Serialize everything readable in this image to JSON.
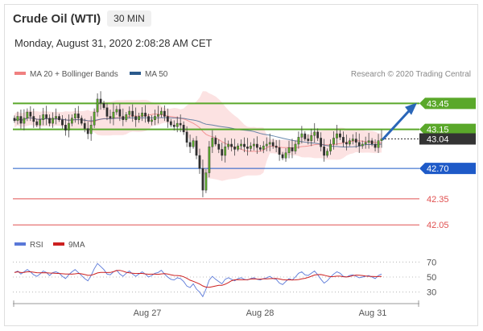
{
  "header": {
    "title": "Crude Oil (WTI)",
    "interval": "30 MIN",
    "datetime": "Monday, August 31, 2020 2:08:28 AM CET"
  },
  "colors": {
    "green": "#5aa82a",
    "blue": "#1e5ac8",
    "red": "#e05050",
    "dark": "#333333",
    "band": "#fbd8d8"
  },
  "chart_data": [
    {
      "type": "candlestick",
      "legend": [
        {
          "name": "MA 20 + Bollinger Bands",
          "color": "#f08080"
        },
        {
          "name": "MA 50",
          "color": "#2a5a8c"
        }
      ],
      "credit": "Research © 2020 Trading Central",
      "ylim": [
        41.95,
        43.62
      ],
      "x_ticks": [
        "Aug 27",
        "Aug 28",
        "Aug 31"
      ],
      "levels": [
        {
          "value": 43.45,
          "label": "43.45",
          "style": "resistance",
          "color": "#5aa82a"
        },
        {
          "value": 43.15,
          "label": "43.15",
          "style": "resistance",
          "color": "#5aa82a"
        },
        {
          "value": 43.04,
          "label": "43.04",
          "style": "last-price",
          "color": "#333333"
        },
        {
          "value": 42.7,
          "label": "42.70",
          "style": "pivot",
          "color": "#1e5ac8"
        },
        {
          "value": 42.35,
          "label": "42.35",
          "style": "support",
          "color": "#e05050"
        },
        {
          "value": 42.05,
          "label": "42.05",
          "style": "support",
          "color": "#e05050"
        }
      ],
      "projection": {
        "from": 43.04,
        "to": 43.4
      },
      "series": {
        "close": [
          43.25,
          43.3,
          43.22,
          43.28,
          43.35,
          43.3,
          43.24,
          43.2,
          43.26,
          43.32,
          43.28,
          43.22,
          43.28,
          43.3,
          43.26,
          43.2,
          43.14,
          43.22,
          43.28,
          43.33,
          43.28,
          43.22,
          43.16,
          43.1,
          43.2,
          43.35,
          43.5,
          43.45,
          43.4,
          43.3,
          43.28,
          43.35,
          43.38,
          43.3,
          43.26,
          43.32,
          43.36,
          43.3,
          43.26,
          43.3,
          43.34,
          43.3,
          43.24,
          43.26,
          43.3,
          43.32,
          43.36,
          43.3,
          43.24,
          43.2,
          43.18,
          43.22,
          43.2,
          43.12,
          43.0,
          42.95,
          43.02,
          42.85,
          42.7,
          42.45,
          42.65,
          42.95,
          43.05,
          42.98,
          42.92,
          42.85,
          42.95,
          42.98,
          42.95,
          42.92,
          42.96,
          42.98,
          42.95,
          42.93,
          42.96,
          42.98,
          42.94,
          42.92,
          42.96,
          42.98,
          43.0,
          42.96,
          42.94,
          42.86,
          42.82,
          42.88,
          42.94,
          42.9,
          42.98,
          43.06,
          43.1,
          43.04,
          43.02,
          43.08,
          43.12,
          43.05,
          42.95,
          42.85,
          42.9,
          42.98,
          43.05,
          43.1,
          43.06,
          43.0,
          42.98,
          43.02,
          43.04,
          43.0,
          42.96,
          42.98,
          43.0,
          43.02,
          42.98,
          42.94,
          43.02,
          43.04
        ],
        "rsi": [
          56,
          58,
          54,
          57,
          60,
          57,
          53,
          51,
          54,
          58,
          56,
          52,
          56,
          57,
          55,
          51,
          48,
          53,
          57,
          60,
          56,
          52,
          48,
          45,
          52,
          61,
          68,
          64,
          60,
          54,
          53,
          57,
          59,
          54,
          51,
          55,
          58,
          54,
          51,
          54,
          57,
          54,
          50,
          52,
          55,
          56,
          59,
          54,
          50,
          47,
          46,
          49,
          48,
          44,
          38,
          36,
          41,
          34,
          30,
          24,
          34,
          46,
          51,
          47,
          44,
          41,
          47,
          49,
          47,
          45,
          48,
          49,
          47,
          46,
          48,
          49,
          47,
          46,
          48,
          49,
          51,
          48,
          47,
          42,
          40,
          44,
          48,
          46,
          50,
          55,
          57,
          53,
          52,
          55,
          58,
          53,
          47,
          42,
          45,
          50,
          54,
          57,
          55,
          51,
          50,
          52,
          53,
          51,
          49,
          50,
          51,
          52,
          50,
          48,
          52,
          54
        ]
      }
    },
    {
      "type": "line",
      "legend": [
        {
          "name": "RSI",
          "color": "#5a78d8"
        },
        {
          "name": "9MA",
          "color": "#cc2020"
        }
      ],
      "y_ticks": [
        70,
        50,
        30
      ],
      "ylim": [
        20,
        80
      ]
    }
  ]
}
